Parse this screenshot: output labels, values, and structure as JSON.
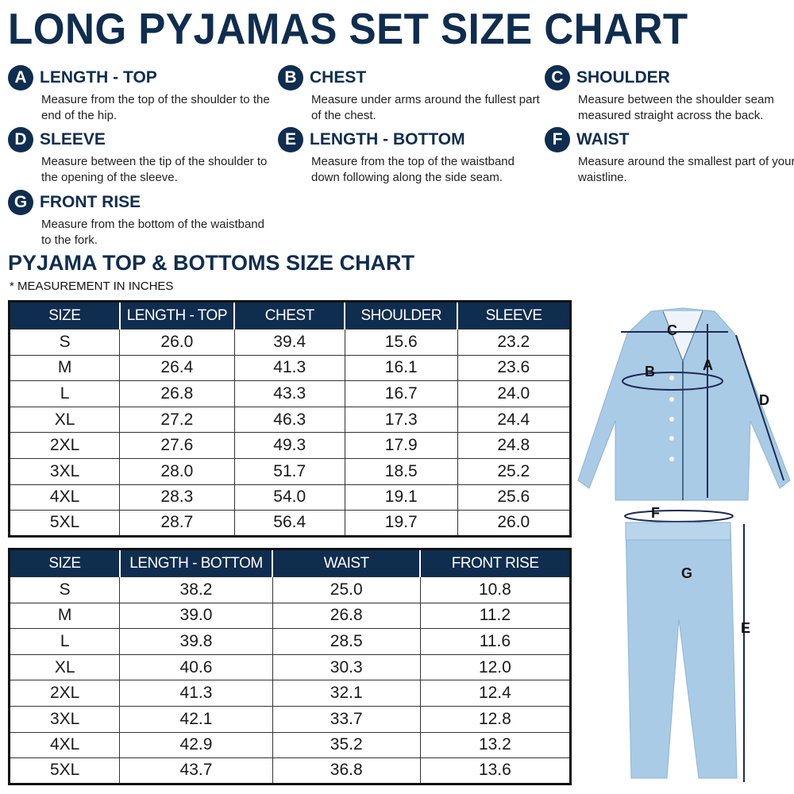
{
  "title": "LONG PYJAMAS SET SIZE CHART",
  "legend": [
    {
      "letter": "A",
      "name": "LENGTH - TOP",
      "desc": "Measure from the top of the shoulder to the end of the hip."
    },
    {
      "letter": "B",
      "name": "CHEST",
      "desc": "Measure under arms around the fullest part of the chest."
    },
    {
      "letter": "C",
      "name": "SHOULDER",
      "desc": "Measure between the shoulder seam measured straight across the back."
    },
    {
      "letter": "D",
      "name": "SLEEVE",
      "desc": "Measure between the tip of the shoulder to the opening of the sleeve."
    },
    {
      "letter": "E",
      "name": "LENGTH - BOTTOM",
      "desc": "Measure from the top of the waistband down following along the side seam."
    },
    {
      "letter": "F",
      "name": "WAIST",
      "desc": "Measure around the smallest part of your waistline."
    },
    {
      "letter": "G",
      "name": "FRONT RISE",
      "desc": "Measure from the bottom of the waistband to the fork."
    }
  ],
  "section_title": "PYJAMA TOP & BOTTOMS SIZE CHART",
  "note": "* MEASUREMENT IN INCHES",
  "top_table": {
    "headers": [
      "SIZE",
      "LENGTH - TOP",
      "CHEST",
      "SHOULDER",
      "SLEEVE"
    ],
    "rows": [
      [
        "S",
        "26.0",
        "39.4",
        "15.6",
        "23.2"
      ],
      [
        "M",
        "26.4",
        "41.3",
        "16.1",
        "23.6"
      ],
      [
        "L",
        "26.8",
        "43.3",
        "16.7",
        "24.0"
      ],
      [
        "XL",
        "27.2",
        "46.3",
        "17.3",
        "24.4"
      ],
      [
        "2XL",
        "27.6",
        "49.3",
        "17.9",
        "24.8"
      ],
      [
        "3XL",
        "28.0",
        "51.7",
        "18.5",
        "25.2"
      ],
      [
        "4XL",
        "28.3",
        "54.0",
        "19.1",
        "25.6"
      ],
      [
        "5XL",
        "28.7",
        "56.4",
        "19.7",
        "26.0"
      ]
    ]
  },
  "bottom_table": {
    "headers": [
      "SIZE",
      "LENGTH - BOTTOM",
      "WAIST",
      "FRONT RISE"
    ],
    "rows": [
      [
        "S",
        "38.2",
        "25.0",
        "10.8"
      ],
      [
        "M",
        "39.0",
        "26.8",
        "11.2"
      ],
      [
        "L",
        "39.8",
        "28.5",
        "11.6"
      ],
      [
        "XL",
        "40.6",
        "30.3",
        "12.0"
      ],
      [
        "2XL",
        "41.3",
        "32.1",
        "12.4"
      ],
      [
        "3XL",
        "42.1",
        "33.7",
        "12.8"
      ],
      [
        "4XL",
        "42.9",
        "35.2",
        "13.2"
      ],
      [
        "5XL",
        "43.7",
        "36.8",
        "13.6"
      ]
    ]
  },
  "diagram_labels": {
    "a": "A",
    "b": "B",
    "c": "C",
    "d": "D",
    "e": "E",
    "f": "F",
    "g": "G"
  },
  "colors": {
    "navy": "#0f2d4f",
    "garment": "#a9cbe6"
  }
}
